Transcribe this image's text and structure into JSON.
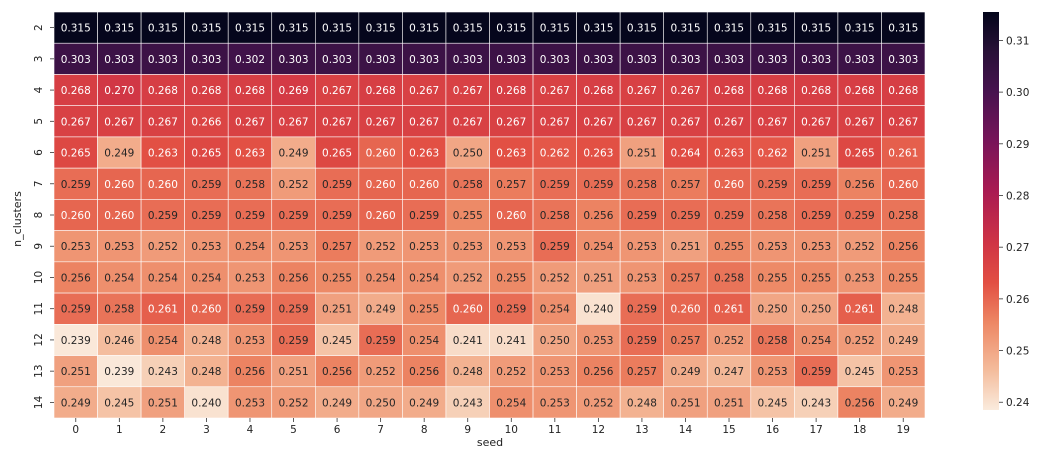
{
  "chart_data": {
    "type": "heatmap",
    "title": "",
    "xlabel": "seed",
    "ylabel": "n_clusters",
    "x_categories": [
      "0",
      "1",
      "2",
      "3",
      "4",
      "5",
      "6",
      "7",
      "8",
      "9",
      "10",
      "11",
      "12",
      "13",
      "14",
      "15",
      "16",
      "17",
      "18",
      "19"
    ],
    "y_categories": [
      "2",
      "3",
      "4",
      "5",
      "6",
      "7",
      "8",
      "9",
      "10",
      "11",
      "12",
      "13",
      "14"
    ],
    "values": [
      [
        "0.315",
        "0.315",
        "0.315",
        "0.315",
        "0.315",
        "0.315",
        "0.315",
        "0.315",
        "0.315",
        "0.315",
        "0.315",
        "0.315",
        "0.315",
        "0.315",
        "0.315",
        "0.315",
        "0.315",
        "0.315",
        "0.315",
        "0.315"
      ],
      [
        "0.303",
        "0.303",
        "0.303",
        "0.303",
        "0.302",
        "0.303",
        "0.303",
        "0.303",
        "0.303",
        "0.303",
        "0.303",
        "0.303",
        "0.303",
        "0.303",
        "0.303",
        "0.303",
        "0.303",
        "0.303",
        "0.303",
        "0.303"
      ],
      [
        "0.268",
        "0.270",
        "0.268",
        "0.268",
        "0.268",
        "0.269",
        "0.267",
        "0.268",
        "0.267",
        "0.267",
        "0.268",
        "0.267",
        "0.268",
        "0.267",
        "0.267",
        "0.268",
        "0.268",
        "0.268",
        "0.268",
        "0.268"
      ],
      [
        "0.267",
        "0.267",
        "0.267",
        "0.266",
        "0.267",
        "0.267",
        "0.267",
        "0.267",
        "0.267",
        "0.267",
        "0.267",
        "0.267",
        "0.267",
        "0.267",
        "0.267",
        "0.267",
        "0.267",
        "0.267",
        "0.267",
        "0.267"
      ],
      [
        "0.265",
        "0.249",
        "0.263",
        "0.265",
        "0.263",
        "0.249",
        "0.265",
        "0.260",
        "0.263",
        "0.250",
        "0.263",
        "0.262",
        "0.263",
        "0.251",
        "0.264",
        "0.263",
        "0.262",
        "0.251",
        "0.265",
        "0.261"
      ],
      [
        "0.259",
        "0.260",
        "0.260",
        "0.259",
        "0.258",
        "0.252",
        "0.259",
        "0.260",
        "0.260",
        "0.258",
        "0.257",
        "0.259",
        "0.259",
        "0.258",
        "0.257",
        "0.260",
        "0.259",
        "0.259",
        "0.256",
        "0.260"
      ],
      [
        "0.260",
        "0.260",
        "0.259",
        "0.259",
        "0.259",
        "0.259",
        "0.259",
        "0.260",
        "0.259",
        "0.255",
        "0.260",
        "0.258",
        "0.256",
        "0.259",
        "0.259",
        "0.259",
        "0.258",
        "0.259",
        "0.259",
        "0.258"
      ],
      [
        "0.253",
        "0.253",
        "0.252",
        "0.253",
        "0.254",
        "0.253",
        "0.257",
        "0.252",
        "0.253",
        "0.253",
        "0.253",
        "0.259",
        "0.254",
        "0.253",
        "0.251",
        "0.255",
        "0.253",
        "0.253",
        "0.252",
        "0.256"
      ],
      [
        "0.256",
        "0.254",
        "0.254",
        "0.254",
        "0.253",
        "0.256",
        "0.255",
        "0.254",
        "0.254",
        "0.252",
        "0.255",
        "0.252",
        "0.251",
        "0.253",
        "0.257",
        "0.258",
        "0.255",
        "0.255",
        "0.253",
        "0.255"
      ],
      [
        "0.259",
        "0.258",
        "0.261",
        "0.260",
        "0.259",
        "0.259",
        "0.251",
        "0.249",
        "0.255",
        "0.260",
        "0.259",
        "0.254",
        "0.240",
        "0.259",
        "0.260",
        "0.261",
        "0.250",
        "0.250",
        "0.261",
        "0.248"
      ],
      [
        "0.239",
        "0.246",
        "0.254",
        "0.248",
        "0.253",
        "0.259",
        "0.245",
        "0.259",
        "0.254",
        "0.241",
        "0.241",
        "0.250",
        "0.253",
        "0.259",
        "0.257",
        "0.252",
        "0.258",
        "0.254",
        "0.252",
        "0.249"
      ],
      [
        "0.251",
        "0.239",
        "0.243",
        "0.248",
        "0.256",
        "0.251",
        "0.256",
        "0.252",
        "0.256",
        "0.248",
        "0.252",
        "0.253",
        "0.256",
        "0.257",
        "0.249",
        "0.247",
        "0.253",
        "0.259",
        "0.245",
        "0.253"
      ],
      [
        "0.249",
        "0.245",
        "0.251",
        "0.240",
        "0.253",
        "0.252",
        "0.249",
        "0.250",
        "0.249",
        "0.243",
        "0.254",
        "0.253",
        "0.252",
        "0.248",
        "0.251",
        "0.251",
        "0.245",
        "0.243",
        "0.256",
        "0.249"
      ]
    ],
    "colorbar": {
      "min": 0.2385,
      "max": 0.3155,
      "ticks": [
        "0.24",
        "0.25",
        "0.26",
        "0.27",
        "0.28",
        "0.29",
        "0.30",
        "0.31"
      ],
      "colormap": "rocket_r"
    },
    "grid": false,
    "legend": "colorbar-right"
  }
}
